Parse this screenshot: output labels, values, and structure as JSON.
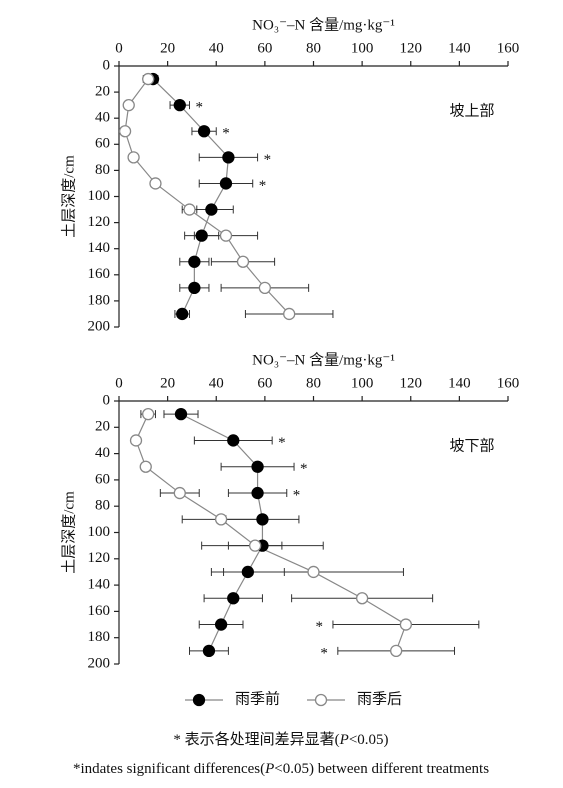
{
  "chart_data": [
    {
      "type": "line",
      "x_label": "NO₃⁻–N 含量/mg·kg⁻¹",
      "y_label": "土层深度/cm",
      "panel_label": "坡上部",
      "y": [
        10,
        30,
        50,
        70,
        90,
        110,
        130,
        150,
        170,
        190
      ],
      "xlim": [
        0,
        160
      ],
      "xticks": [
        0,
        20,
        40,
        60,
        80,
        100,
        120,
        140,
        160
      ],
      "ylim": [
        0,
        200
      ],
      "yticks": [
        0,
        20,
        40,
        60,
        80,
        100,
        120,
        140,
        160,
        180,
        200
      ],
      "significance": [
        null,
        "*",
        "*",
        "*",
        "*",
        null,
        null,
        null,
        null,
        null
      ],
      "series": [
        {
          "name": "雨季前",
          "color": "#000000",
          "filled": true,
          "values": [
            14,
            25,
            35,
            45,
            44,
            38,
            34,
            31,
            31,
            26
          ],
          "errors": [
            2,
            4,
            5,
            12,
            11,
            9,
            7,
            6,
            6,
            3
          ]
        },
        {
          "name": "雨季后",
          "color": "#888888",
          "filled": false,
          "values": [
            12,
            4,
            2.5,
            6,
            15,
            29,
            44,
            51,
            60,
            70
          ],
          "errors": [
            2,
            0,
            0,
            0,
            0,
            3,
            13,
            13,
            18,
            18
          ]
        }
      ]
    },
    {
      "type": "line",
      "x_label": "NO₃⁻–N 含量/mg·kg⁻¹",
      "y_label": "土层深度/cm",
      "panel_label": "坡下部",
      "y": [
        10,
        30,
        50,
        70,
        90,
        110,
        130,
        150,
        170,
        190
      ],
      "xlim": [
        0,
        160
      ],
      "xticks": [
        0,
        20,
        40,
        60,
        80,
        100,
        120,
        140,
        160
      ],
      "ylim": [
        0,
        200
      ],
      "yticks": [
        0,
        20,
        40,
        60,
        80,
        100,
        120,
        140,
        160,
        180,
        200
      ],
      "significance": [
        null,
        "*",
        "*",
        "*",
        null,
        null,
        null,
        null,
        "*",
        "*"
      ],
      "series": [
        {
          "color": "#000000",
          "filled": true,
          "values": [
            25.5,
            47,
            57,
            57,
            59,
            59,
            53,
            47,
            42,
            37
          ],
          "errors": [
            7,
            16,
            15,
            12,
            15,
            25,
            15,
            12,
            9,
            8
          ]
        },
        {
          "color": "#888888",
          "filled": false,
          "values": [
            12,
            7,
            11,
            25,
            42,
            56,
            80,
            100,
            118,
            114
          ],
          "errors": [
            3,
            0,
            0,
            8,
            16,
            11,
            37,
            29,
            30,
            24
          ]
        }
      ]
    }
  ],
  "caption_cn": [
    "* 表示各处理间差异显著(",
    "P",
    "<0.05)"
  ],
  "caption_en": [
    "*indates significant differences(",
    "P",
    "<0.05) between different treatments"
  ]
}
